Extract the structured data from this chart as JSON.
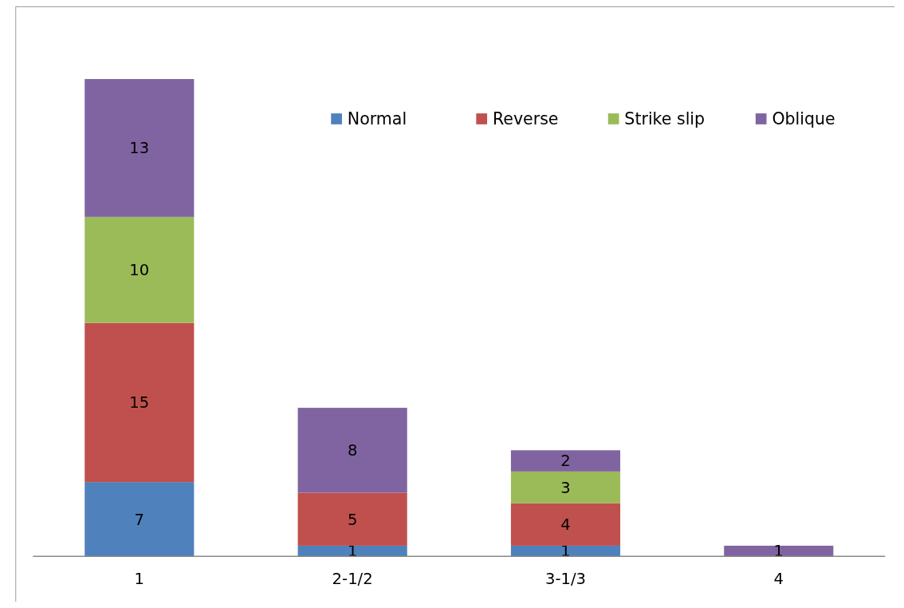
{
  "chart_data": {
    "type": "bar",
    "stacked": true,
    "categories": [
      "1",
      "2-1/2",
      "3-1/3",
      "4"
    ],
    "series": [
      {
        "name": "Normal",
        "color": "#4f81bd",
        "values": [
          7,
          1,
          1,
          null
        ]
      },
      {
        "name": "Reverse",
        "color": "#c0504d",
        "values": [
          15,
          5,
          4,
          null
        ]
      },
      {
        "name": "Strike slip",
        "color": "#9bbb59",
        "values": [
          10,
          null,
          3,
          null
        ]
      },
      {
        "name": "Oblique",
        "color": "#8064a2",
        "values": [
          13,
          8,
          2,
          1
        ]
      }
    ],
    "data_labels": true,
    "legend": "top right"
  }
}
